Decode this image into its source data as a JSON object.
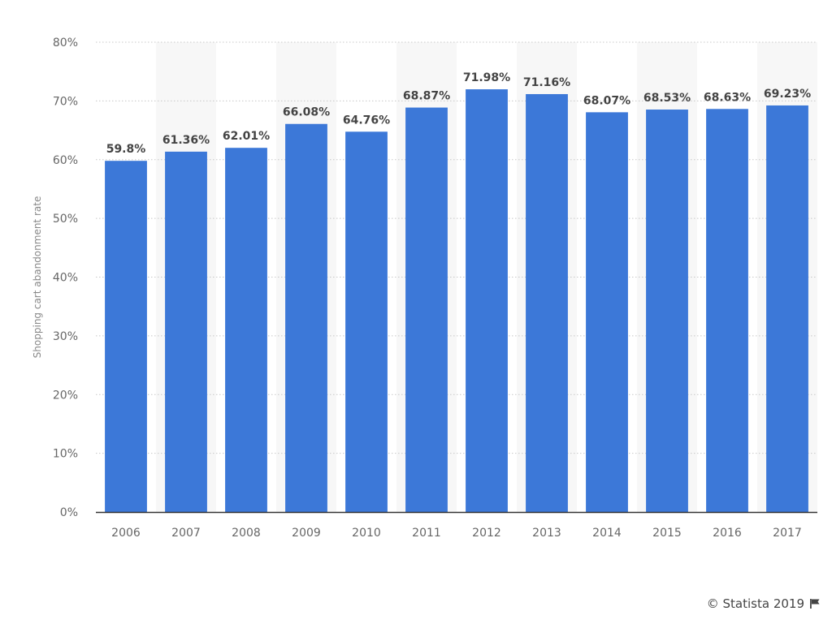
{
  "chart_data": {
    "type": "bar",
    "categories": [
      "2006",
      "2007",
      "2008",
      "2009",
      "2010",
      "2011",
      "2012",
      "2013",
      "2014",
      "2015",
      "2016",
      "2017"
    ],
    "values": [
      59.8,
      61.36,
      62.01,
      66.08,
      64.76,
      68.87,
      71.98,
      71.16,
      68.07,
      68.53,
      68.63,
      69.23
    ],
    "data_labels": [
      "59.8%",
      "61.36%",
      "62.01%",
      "66.08%",
      "64.76%",
      "68.87%",
      "71.98%",
      "71.16%",
      "68.07%",
      "68.53%",
      "68.63%",
      "69.23%"
    ],
    "ylabel": "Shopping cart abandonment rate",
    "xlabel": "",
    "ylim": [
      0,
      80
    ],
    "yticks": [
      0,
      10,
      20,
      30,
      40,
      50,
      60,
      70,
      80
    ],
    "ytick_labels": [
      "0%",
      "10%",
      "20%",
      "30%",
      "40%",
      "50%",
      "60%",
      "70%",
      "80%"
    ],
    "grid": true,
    "bar_color": "#3c78d8",
    "alt_band_color": "#f7f7f7"
  },
  "credit": {
    "text": "© Statista 2019",
    "icon": "flag-icon"
  }
}
